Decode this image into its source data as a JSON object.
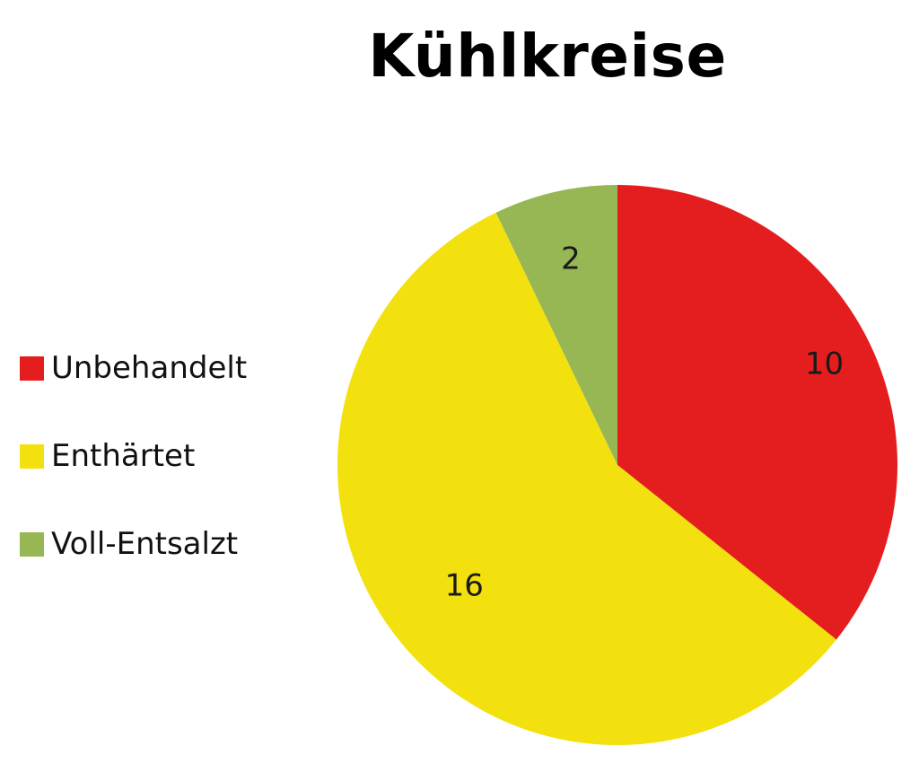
{
  "chart_data": {
    "type": "pie",
    "title": "Kühlkreise",
    "legend_position": "left",
    "slices": [
      {
        "label": "Unbehandelt",
        "value": 10,
        "color": "#E41E1E"
      },
      {
        "label": "Enthärtet",
        "value": 16,
        "color": "#F2E10F"
      },
      {
        "label": "Voll-Entsalzt",
        "value": 2,
        "color": "#97B654"
      }
    ]
  }
}
